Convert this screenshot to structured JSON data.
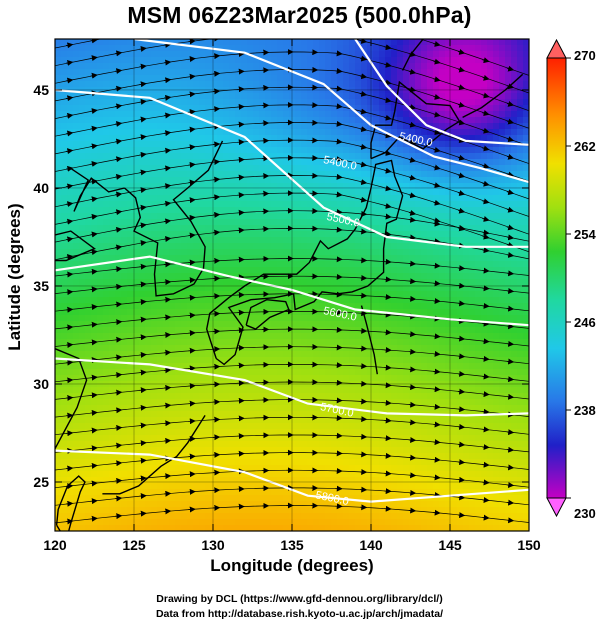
{
  "title": "MSM 06Z23Mar2025 (500.0hPa)",
  "axes": {
    "xlabel": "Longitude (degrees)",
    "ylabel": "Latitude  (degrees)",
    "xticks": [
      "120",
      "125",
      "130",
      "135",
      "140",
      "145",
      "150"
    ],
    "yticks": [
      "25",
      "30",
      "35",
      "40",
      "45"
    ],
    "xlim": [
      120,
      150
    ],
    "ylim": [
      22.5,
      47.6
    ]
  },
  "colorbar": {
    "ticks": [
      "270",
      "262",
      "254",
      "246",
      "238",
      "230"
    ],
    "range": [
      230,
      270
    ],
    "colors": [
      "#c400c4",
      "#2020c8",
      "#2878e8",
      "#20c8e8",
      "#20d8a0",
      "#30d030",
      "#a0e010",
      "#f0e000",
      "#ff9000",
      "#ff2000"
    ]
  },
  "contours": {
    "color": "#ffffff",
    "labels": [
      {
        "text": "5400.0",
        "lon": 138,
        "lat": 41.1
      },
      {
        "text": "5400.0",
        "lon": 142.8,
        "lat": 42.3
      },
      {
        "text": "5500.0",
        "lon": 138.2,
        "lat": 38.2
      },
      {
        "text": "5600.0",
        "lon": 138,
        "lat": 33.4
      },
      {
        "text": "5700.0",
        "lon": 137.8,
        "lat": 28.5
      },
      {
        "text": "5800.0",
        "lon": 137.5,
        "lat": 24.0
      }
    ]
  },
  "credits": {
    "line1": "Drawing by DCL (https://www.gfd-dennou.org/library/dcl/)",
    "line2": "Data from http://database.rish.kyoto-u.ac.jp/arch/jmadata/"
  },
  "map_features": [
    "temperature-field",
    "streamlines",
    "geopotential-contours",
    "coastlines",
    "grid-lines"
  ]
}
